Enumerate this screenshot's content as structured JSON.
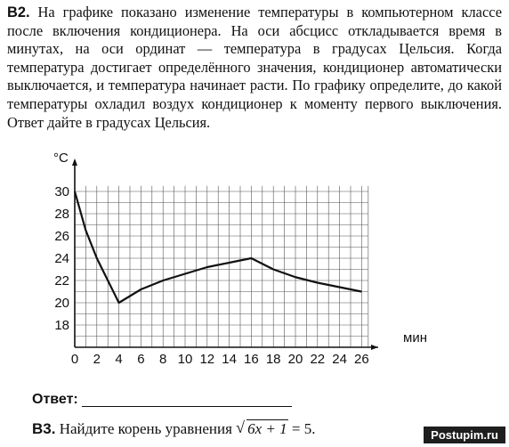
{
  "problem": {
    "number": "B2.",
    "text": "На графике показано изменение температуры в компьютерном классе после включения кондиционера. На оси абсцисс откладывается время в минутах, на оси ординат — температура в градусах Цельсия. Когда температура достигает определённого значения, кондиционер автоматически выключается, и температура начинает расти. По графику определите, до какой температуры охладил воздух кондиционер к моменту первого выключения. Ответ дайте в градусах Цельсия."
  },
  "chart_data": {
    "type": "line",
    "xlabel": "мин",
    "ylabel": "°C",
    "xlim": [
      0,
      26
    ],
    "ylim": [
      16,
      30
    ],
    "x_ticks": [
      "0",
      "2",
      "4",
      "6",
      "8",
      "10",
      "12",
      "14",
      "16",
      "18",
      "20",
      "22",
      "24",
      "26"
    ],
    "y_ticks": [
      "18",
      "20",
      "22",
      "24",
      "26",
      "28",
      "30"
    ],
    "grid": true,
    "series": [
      {
        "x": [
          0,
          1,
          2,
          3,
          4,
          6,
          8,
          10,
          12,
          14,
          16,
          18,
          20,
          22,
          24,
          26
        ],
        "values": [
          30,
          26.5,
          24,
          22,
          20,
          21.2,
          22,
          22.6,
          23.2,
          23.6,
          24,
          23,
          22.3,
          21.8,
          21.4,
          21
        ]
      }
    ],
    "color": "#111111"
  },
  "answer": {
    "label": "Ответ:"
  },
  "next_problem": {
    "number": "B3.",
    "text": "Найдите корень уравнения",
    "radicand": "6x + 1",
    "rhs": " = 5."
  },
  "watermark": "Postupim.ru"
}
